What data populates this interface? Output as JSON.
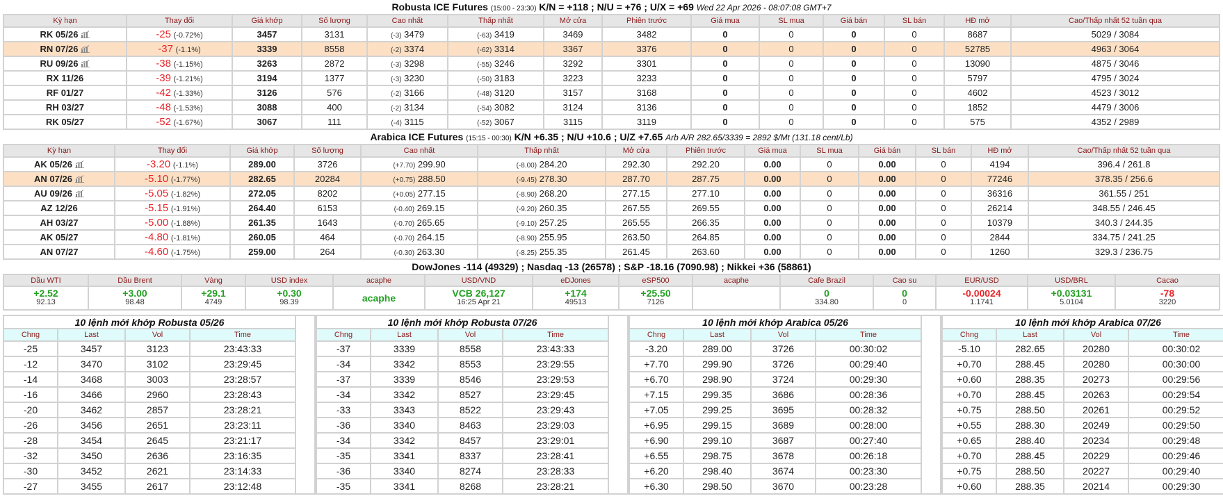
{
  "robusta": {
    "title": "Robusta ICE Futures",
    "session": "(15:00 - 23:30)",
    "spreads": "K/N = +118 ; N/U = +76 ; U/X = +69",
    "datetime": "Wed 22 Apr 2026 - 08:07:08 GMT+7",
    "headers": [
      "Kỳ hạn",
      "Thay đổi",
      "Giá khớp",
      "Số lượng",
      "Cao nhất",
      "Thấp nhất",
      "Mở cửa",
      "Phiên trước",
      "Giá mua",
      "SL mua",
      "Giá bán",
      "SL bán",
      "HĐ mở",
      "Cao/Thấp nhất 52 tuần qua"
    ],
    "rows": [
      {
        "term": "RK 05/26",
        "chart": true,
        "chg": "-25",
        "pct": "(-0.72%)",
        "last": "3457",
        "vol": "3131",
        "high_chg": "(-3)",
        "high": "3479",
        "low_chg": "(-63)",
        "low": "3419",
        "open": "3469",
        "prev": "3482",
        "bid": "0",
        "bid_qty": "0",
        "ask": "0",
        "ask_qty": "0",
        "oi": "8687",
        "range52": "5029 / 3084"
      },
      {
        "term": "RN 07/26",
        "chart": true,
        "chg": "-37",
        "pct": "(-1.1%)",
        "last": "3339",
        "vol": "8558",
        "high_chg": "(-2)",
        "high": "3374",
        "low_chg": "(-62)",
        "low": "3314",
        "open": "3367",
        "prev": "3376",
        "bid": "0",
        "bid_qty": "0",
        "ask": "0",
        "ask_qty": "0",
        "oi": "52785",
        "range52": "4963 / 3064"
      },
      {
        "term": "RU 09/26",
        "chart": true,
        "chg": "-38",
        "pct": "(-1.15%)",
        "last": "3263",
        "vol": "2872",
        "high_chg": "(-3)",
        "high": "3298",
        "low_chg": "(-55)",
        "low": "3246",
        "open": "3292",
        "prev": "3301",
        "bid": "0",
        "bid_qty": "0",
        "ask": "0",
        "ask_qty": "0",
        "oi": "13090",
        "range52": "4875 / 3046"
      },
      {
        "term": "RX 11/26",
        "chart": false,
        "chg": "-39",
        "pct": "(-1.21%)",
        "last": "3194",
        "vol": "1377",
        "high_chg": "(-3)",
        "high": "3230",
        "low_chg": "(-50)",
        "low": "3183",
        "open": "3223",
        "prev": "3233",
        "bid": "0",
        "bid_qty": "0",
        "ask": "0",
        "ask_qty": "0",
        "oi": "5797",
        "range52": "4795 / 3024"
      },
      {
        "term": "RF 01/27",
        "chart": false,
        "chg": "-42",
        "pct": "(-1.33%)",
        "last": "3126",
        "vol": "576",
        "high_chg": "(-2)",
        "high": "3166",
        "low_chg": "(-48)",
        "low": "3120",
        "open": "3157",
        "prev": "3168",
        "bid": "0",
        "bid_qty": "0",
        "ask": "0",
        "ask_qty": "0",
        "oi": "4602",
        "range52": "4523 / 3012"
      },
      {
        "term": "RH 03/27",
        "chart": false,
        "chg": "-48",
        "pct": "(-1.53%)",
        "last": "3088",
        "vol": "400",
        "high_chg": "(-2)",
        "high": "3134",
        "low_chg": "(-54)",
        "low": "3082",
        "open": "3124",
        "prev": "3136",
        "bid": "0",
        "bid_qty": "0",
        "ask": "0",
        "ask_qty": "0",
        "oi": "1852",
        "range52": "4479 / 3006"
      },
      {
        "term": "RK 05/27",
        "chart": false,
        "chg": "-52",
        "pct": "(-1.67%)",
        "last": "3067",
        "vol": "111",
        "high_chg": "(-4)",
        "high": "3115",
        "low_chg": "(-52)",
        "low": "3067",
        "open": "3115",
        "prev": "3119",
        "bid": "0",
        "bid_qty": "0",
        "ask": "0",
        "ask_qty": "0",
        "oi": "575",
        "range52": "4352 / 2989"
      }
    ]
  },
  "arabica": {
    "title": "Arabica ICE Futures",
    "session": "(15:15 - 00:30)",
    "spreads": "K/N +6.35 ; N/U +10.6 ; U/Z +7.65",
    "arb": "Arb A/R 282.65/3339 = 2892 $/Mt (131.18 cent/Lb)",
    "headers": [
      "Kỳ hạn",
      "Thay đổi",
      "Giá khớp",
      "Số lượng",
      "Cao nhất",
      "Thấp nhất",
      "Mở cửa",
      "Phiên trước",
      "Giá mua",
      "SL mua",
      "Giá bán",
      "SL bán",
      "HĐ mở",
      "Cao/Thấp nhất 52 tuần qua"
    ],
    "rows": [
      {
        "term": "AK 05/26",
        "chart": true,
        "chg": "-3.20",
        "pct": "(-1.1%)",
        "last": "289.00",
        "vol": "3726",
        "high_chg": "(+7.70)",
        "high": "299.90",
        "low_chg": "(-8.00)",
        "low": "284.20",
        "open": "292.30",
        "prev": "292.20",
        "bid": "0.00",
        "bid_qty": "0",
        "ask": "0.00",
        "ask_qty": "0",
        "oi": "4194",
        "range52": "396.4 / 261.8"
      },
      {
        "term": "AN 07/26",
        "chart": true,
        "chg": "-5.10",
        "pct": "(-1.77%)",
        "last": "282.65",
        "vol": "20284",
        "high_chg": "(+0.75)",
        "high": "288.50",
        "low_chg": "(-9.45)",
        "low": "278.30",
        "open": "287.70",
        "prev": "287.75",
        "bid": "0.00",
        "bid_qty": "0",
        "ask": "0.00",
        "ask_qty": "0",
        "oi": "77246",
        "range52": "378.35 / 256.6"
      },
      {
        "term": "AU 09/26",
        "chart": true,
        "chg": "-5.05",
        "pct": "(-1.82%)",
        "last": "272.05",
        "vol": "8202",
        "high_chg": "(+0.05)",
        "high": "277.15",
        "low_chg": "(-8.90)",
        "low": "268.20",
        "open": "277.15",
        "prev": "277.10",
        "bid": "0.00",
        "bid_qty": "0",
        "ask": "0.00",
        "ask_qty": "0",
        "oi": "36316",
        "range52": "361.55 / 251"
      },
      {
        "term": "AZ 12/26",
        "chart": false,
        "chg": "-5.15",
        "pct": "(-1.91%)",
        "last": "264.40",
        "vol": "6153",
        "high_chg": "(-0.40)",
        "high": "269.15",
        "low_chg": "(-9.20)",
        "low": "260.35",
        "open": "267.55",
        "prev": "269.55",
        "bid": "0.00",
        "bid_qty": "0",
        "ask": "0.00",
        "ask_qty": "0",
        "oi": "26214",
        "range52": "348.55 / 246.45"
      },
      {
        "term": "AH 03/27",
        "chart": false,
        "chg": "-5.00",
        "pct": "(-1.88%)",
        "last": "261.35",
        "vol": "1643",
        "high_chg": "(-0.70)",
        "high": "265.65",
        "low_chg": "(-9.10)",
        "low": "257.25",
        "open": "265.55",
        "prev": "266.35",
        "bid": "0.00",
        "bid_qty": "0",
        "ask": "0.00",
        "ask_qty": "0",
        "oi": "10379",
        "range52": "340.3 / 244.35"
      },
      {
        "term": "AK 05/27",
        "chart": false,
        "chg": "-4.80",
        "pct": "(-1.81%)",
        "last": "260.05",
        "vol": "464",
        "high_chg": "(-0.70)",
        "high": "264.15",
        "low_chg": "(-8.90)",
        "low": "255.95",
        "open": "263.50",
        "prev": "264.85",
        "bid": "0.00",
        "bid_qty": "0",
        "ask": "0.00",
        "ask_qty": "0",
        "oi": "2844",
        "range52": "334.75 / 241.25"
      },
      {
        "term": "AN 07/27",
        "chart": false,
        "chg": "-4.60",
        "pct": "(-1.75%)",
        "last": "259.00",
        "vol": "264",
        "high_chg": "(-0.30)",
        "high": "263.30",
        "low_chg": "(-8.25)",
        "low": "255.35",
        "open": "261.45",
        "prev": "263.60",
        "bid": "0.00",
        "bid_qty": "0",
        "ask": "0.00",
        "ask_qty": "0",
        "oi": "1260",
        "range52": "329.3 / 236.75"
      }
    ]
  },
  "indices": {
    "title": "DowJones -114 (49329) ; Nasdaq -13 (26578) ; S&P -18.16 (7090.98) ; Nikkei +36 (58861)"
  },
  "markets": [
    {
      "label": "Dầu WTI",
      "chg": "+2.52",
      "value": "92.13",
      "color": "green"
    },
    {
      "label": "Dầu Brent",
      "chg": "+3.00",
      "value": "98.48",
      "color": "green"
    },
    {
      "label": "Vàng",
      "chg": "+29.1",
      "value": "4749",
      "color": "green"
    },
    {
      "label": "USD index",
      "chg": "+0.30",
      "value": "98.39",
      "color": "green"
    },
    {
      "label": "acaphe",
      "chg": "acaphe",
      "value": "",
      "color": "green"
    },
    {
      "label": "USD/VND",
      "chg": "VCB 26,127",
      "value": "16:25 Apr 21",
      "color": "green"
    },
    {
      "label": "eDJones",
      "chg": "+174",
      "value": "49513",
      "color": "green"
    },
    {
      "label": "eSP500",
      "chg": "+25.50",
      "value": "7126",
      "color": "green"
    },
    {
      "label": "acaphe",
      "chg": "",
      "value": "",
      "color": "green"
    },
    {
      "label": "Cafe Brazil",
      "chg": "0",
      "value": "334.80",
      "color": "green"
    },
    {
      "label": "Cao su",
      "chg": "0",
      "value": "0",
      "color": "green"
    },
    {
      "label": "EUR/USD",
      "chg": "-0.00024",
      "value": "1.1741",
      "color": "red"
    },
    {
      "label": "USD/BRL",
      "chg": "+0.03131",
      "value": "5.0104",
      "color": "green"
    },
    {
      "label": "Cacao",
      "chg": "-78",
      "value": "3220",
      "color": "red"
    }
  ],
  "trades": [
    {
      "title": "10 lệnh mới khớp Robusta 05/26",
      "headers": [
        "Chng",
        "Last",
        "Vol",
        "Time"
      ],
      "rows": [
        [
          "-25",
          "3457",
          "3123",
          "23:43:33"
        ],
        [
          "-12",
          "3470",
          "3102",
          "23:29:45"
        ],
        [
          "-14",
          "3468",
          "3003",
          "23:28:57"
        ],
        [
          "-16",
          "3466",
          "2960",
          "23:28:43"
        ],
        [
          "-20",
          "3462",
          "2857",
          "23:28:21"
        ],
        [
          "-26",
          "3456",
          "2651",
          "23:23:11"
        ],
        [
          "-28",
          "3454",
          "2645",
          "23:21:17"
        ],
        [
          "-32",
          "3450",
          "2636",
          "23:16:35"
        ],
        [
          "-30",
          "3452",
          "2621",
          "23:14:33"
        ],
        [
          "-27",
          "3455",
          "2617",
          "23:12:48"
        ]
      ]
    },
    {
      "title": "10 lệnh mới khớp Robusta 07/26",
      "headers": [
        "Chng",
        "Last",
        "Vol",
        "Time"
      ],
      "rows": [
        [
          "-37",
          "3339",
          "8558",
          "23:43:33"
        ],
        [
          "-34",
          "3342",
          "8553",
          "23:29:55"
        ],
        [
          "-37",
          "3339",
          "8546",
          "23:29:53"
        ],
        [
          "-34",
          "3342",
          "8527",
          "23:29:45"
        ],
        [
          "-33",
          "3343",
          "8522",
          "23:29:43"
        ],
        [
          "-36",
          "3340",
          "8463",
          "23:29:03"
        ],
        [
          "-34",
          "3342",
          "8457",
          "23:29:01"
        ],
        [
          "-35",
          "3341",
          "8337",
          "23:28:41"
        ],
        [
          "-36",
          "3340",
          "8274",
          "23:28:33"
        ],
        [
          "-35",
          "3341",
          "8268",
          "23:28:21"
        ]
      ]
    },
    {
      "title": "10 lệnh mới khớp Arabica 05/26",
      "headers": [
        "Chng",
        "Last",
        "Vol",
        "Time"
      ],
      "rows": [
        [
          "-3.20",
          "289.00",
          "3726",
          "00:30:02"
        ],
        [
          "+7.70",
          "299.90",
          "3726",
          "00:29:40"
        ],
        [
          "+6.70",
          "298.90",
          "3724",
          "00:29:30"
        ],
        [
          "+7.15",
          "299.35",
          "3686",
          "00:28:36"
        ],
        [
          "+7.05",
          "299.25",
          "3695",
          "00:28:32"
        ],
        [
          "+6.95",
          "299.15",
          "3689",
          "00:28:00"
        ],
        [
          "+6.90",
          "299.10",
          "3687",
          "00:27:40"
        ],
        [
          "+6.55",
          "298.75",
          "3678",
          "00:26:18"
        ],
        [
          "+6.20",
          "298.40",
          "3674",
          "00:23:30"
        ],
        [
          "+6.30",
          "298.50",
          "3670",
          "00:23:28"
        ]
      ]
    },
    {
      "title": "10 lệnh mới khớp Arabica 07/26",
      "headers": [
        "Chng",
        "Last",
        "Vol",
        "Time"
      ],
      "rows": [
        [
          "-5.10",
          "282.65",
          "20280",
          "00:30:02"
        ],
        [
          "+0.70",
          "288.45",
          "20280",
          "00:30:00"
        ],
        [
          "+0.60",
          "288.35",
          "20273",
          "00:29:56"
        ],
        [
          "+0.70",
          "288.45",
          "20263",
          "00:29:54"
        ],
        [
          "+0.75",
          "288.50",
          "20261",
          "00:29:52"
        ],
        [
          "+0.55",
          "288.30",
          "20249",
          "00:29:50"
        ],
        [
          "+0.65",
          "288.40",
          "20234",
          "00:29:48"
        ],
        [
          "+0.70",
          "288.45",
          "20229",
          "00:29:46"
        ],
        [
          "+0.75",
          "288.50",
          "20227",
          "00:29:40"
        ],
        [
          "+0.60",
          "288.35",
          "20214",
          "00:29:30"
        ]
      ]
    }
  ],
  "colors": {
    "up": "#22a022",
    "down": "#e8262b",
    "header_text": "#8b1a1a",
    "highlight_row": "#fde0c4",
    "trade_header_bg": "#e0fbfb"
  }
}
